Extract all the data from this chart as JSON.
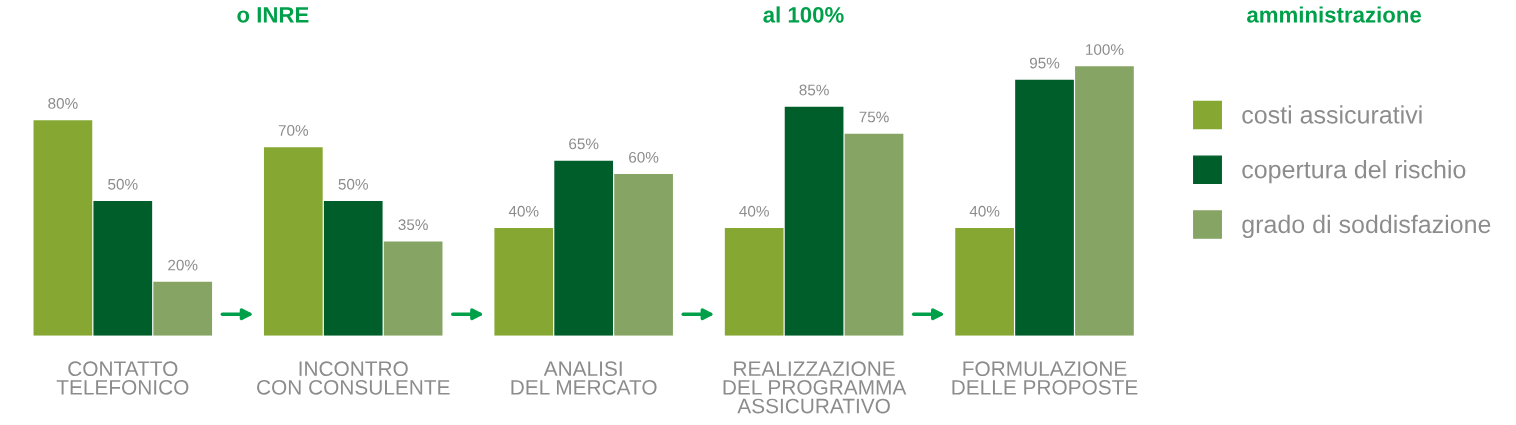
{
  "chart_data": {
    "type": "bar",
    "categories": [
      "CONTATTO\nTELEFONICO",
      "INCONTRO\nCON CONSULENTE",
      "ANALISI\nDEL MERCATO",
      "REALIZZAZIONE\nDEL PROGRAMMA\nASSICURATIVO",
      "FORMULAZIONE\nDELLE PROPOSTE"
    ],
    "series": [
      {
        "name": "costi assicurativi",
        "color": "#86a832",
        "values": [
          80,
          70,
          40,
          40,
          40
        ],
        "value_labels": [
          "80%",
          "70%",
          "40%",
          "40%",
          "40%"
        ]
      },
      {
        "name": "copertura del rischio",
        "color": "#005e2a",
        "values": [
          50,
          50,
          65,
          85,
          95
        ],
        "value_labels": [
          "50%",
          "50%",
          "65%",
          "85%",
          "95%"
        ]
      },
      {
        "name": "grado di soddisfazione",
        "color": "#86a464",
        "values": [
          20,
          35,
          60,
          75,
          100
        ],
        "value_labels": [
          "20%",
          "35%",
          "60%",
          "75%",
          "100%"
        ]
      }
    ],
    "legend": "right",
    "annotations": [
      "o INRE",
      "al 100%",
      "amministrazione"
    ]
  }
}
